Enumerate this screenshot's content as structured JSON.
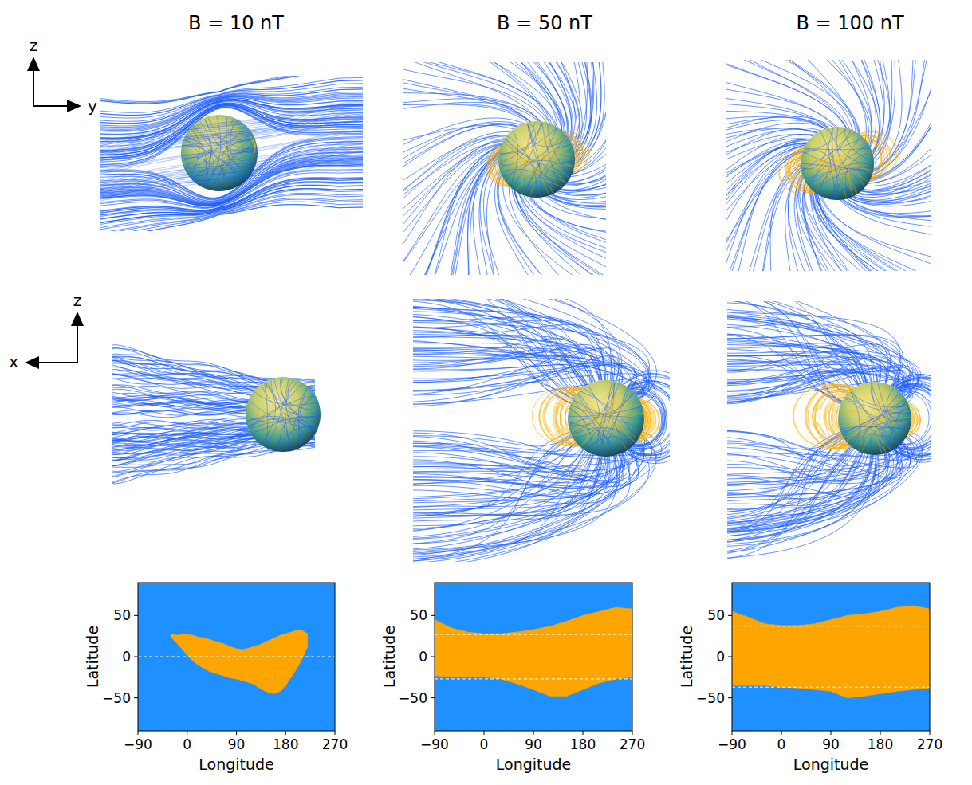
{
  "chart_data": [
    {
      "type": "range_area",
      "title": "B = 10 nT",
      "x_label": "Longitude",
      "y_label": "Latitude",
      "color": "#1e90ff",
      "x": [
        -90,
        -80,
        -70,
        -60,
        -50,
        -40,
        -30,
        -20,
        -10,
        0,
        10,
        20,
        30,
        40,
        50,
        60,
        70,
        80,
        90,
        100,
        110,
        120,
        130,
        140,
        150,
        160,
        170,
        180,
        190,
        200,
        210,
        220,
        230,
        240,
        250,
        260,
        270
      ],
      "series": [
        {
          "color": "#ffa500",
          "high": [
            null,
            null,
            null,
            null,
            null,
            null,
            28,
            26,
            27,
            27,
            26,
            24,
            23,
            21,
            19,
            17,
            15,
            12,
            10,
            9,
            10,
            12,
            14,
            17,
            20,
            23,
            26,
            28,
            30,
            32,
            32,
            28,
            null,
            null,
            null,
            null,
            null
          ],
          "low": [
            null,
            null,
            null,
            null,
            null,
            null,
            24,
            17,
            10,
            2,
            -5,
            -10,
            -14,
            -18,
            -20,
            -22,
            -24,
            -26,
            -27,
            -29,
            -31,
            -33,
            -37,
            -41,
            -44,
            -45,
            -42,
            -35,
            -25,
            -15,
            -3,
            12,
            null,
            null,
            null,
            null,
            null
          ]
        }
      ],
      "reference_lines": [
        0
      ],
      "xlim": [
        -90,
        270
      ],
      "xticks": [
        {
          "value": -90,
          "label": "−90"
        },
        0,
        90,
        180,
        270
      ],
      "ylim": [
        -90,
        90
      ],
      "yticks": [
        {
          "value": -50,
          "label": "−50"
        },
        0,
        50
      ]
    },
    {
      "type": "range_area",
      "title": "B = 50 nT",
      "x_label": "Longitude",
      "y_label": "Latitude",
      "color": "#1e90ff",
      "x": [
        -90,
        -60,
        -30,
        0,
        30,
        60,
        90,
        120,
        150,
        180,
        210,
        240,
        270
      ],
      "series": [
        {
          "color": "#ffa500",
          "high": [
            45,
            35,
            30,
            28,
            28,
            30,
            33,
            37,
            43,
            50,
            55,
            60,
            58
          ],
          "low": [
            -23,
            -25,
            -25,
            -25,
            -27,
            -33,
            -40,
            -48,
            -48,
            -40,
            -32,
            -27,
            -25
          ]
        }
      ],
      "reference_lines": [
        27,
        -27
      ],
      "xlim": [
        -90,
        270
      ],
      "xticks": [
        {
          "value": -90,
          "label": "−90"
        },
        0,
        90,
        180,
        270
      ],
      "ylim": [
        -90,
        90
      ],
      "yticks": [
        {
          "value": -50,
          "label": "−50"
        },
        0,
        50
      ]
    },
    {
      "type": "range_area",
      "title": "B = 100 nT",
      "x_label": "Longitude",
      "y_label": "Latitude",
      "color": "#1e90ff",
      "x": [
        -90,
        -60,
        -30,
        0,
        30,
        60,
        90,
        120,
        150,
        180,
        210,
        240,
        270
      ],
      "series": [
        {
          "color": "#ffa500",
          "high": [
            55,
            48,
            40,
            38,
            38,
            40,
            45,
            50,
            52,
            55,
            60,
            62,
            58
          ],
          "low": [
            -35,
            -35,
            -35,
            -37,
            -38,
            -40,
            -42,
            -50,
            -48,
            -45,
            -42,
            -40,
            -38
          ]
        }
      ],
      "reference_lines": [
        37,
        -37
      ],
      "xlim": [
        -90,
        270
      ],
      "xticks": [
        {
          "value": -90,
          "label": "−90"
        },
        0,
        90,
        180,
        270
      ],
      "ylim": [
        -90,
        90
      ],
      "yticks": [
        {
          "value": -50,
          "label": "−50"
        },
        0,
        50
      ]
    }
  ],
  "diagram": {
    "rows": [
      {
        "vertical_axis": "z",
        "horizontal_axis": "y"
      },
      {
        "vertical_axis": "z",
        "horizontal_axis": "x"
      }
    ]
  }
}
